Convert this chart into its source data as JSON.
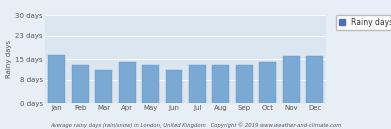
{
  "months": [
    "Jan",
    "Feb",
    "Mar",
    "Apr",
    "May",
    "Jun",
    "Jul",
    "Aug",
    "Sep",
    "Oct",
    "Nov",
    "Dec"
  ],
  "values": [
    16.5,
    13.0,
    11.5,
    14.0,
    13.0,
    11.5,
    13.0,
    13.0,
    13.0,
    14.0,
    16.0,
    16.0
  ],
  "bar_color": "#7aaad4",
  "bar_edge_color": "#6090be",
  "ylim": [
    0,
    30
  ],
  "yticks": [
    0,
    8,
    15,
    23,
    30
  ],
  "ytick_labels": [
    "0 days",
    "8 days",
    "15 days",
    "23 days",
    "30 days"
  ],
  "ylabel": "Rainy days",
  "xlabel_text": "Average rainy days (rain/snow) in London, United Kingdom   Copyright © 2019 www.weather-and-climate.com",
  "legend_label": "Rainy days",
  "legend_color": "#4f6fbe",
  "background_color": "#e8eef5",
  "plot_bg_color": "#dce6f0",
  "grid_color": "#ffffff",
  "tick_fontsize": 5.0,
  "ylabel_fontsize": 5.0,
  "legend_fontsize": 5.5,
  "footer_fontsize": 3.8
}
